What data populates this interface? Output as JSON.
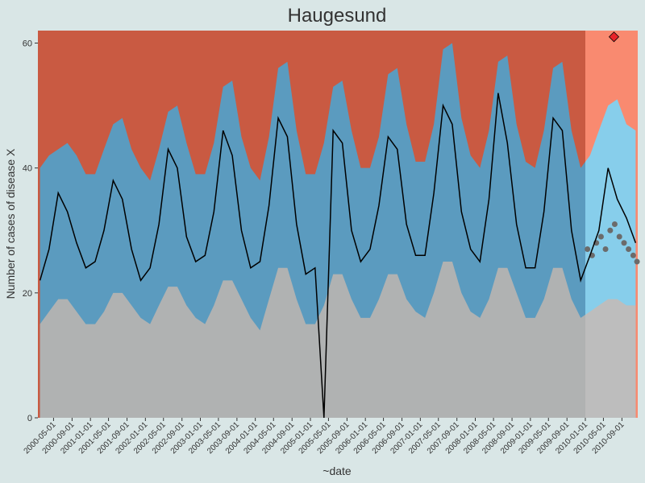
{
  "chart_data": {
    "type": "surveillance",
    "title": "Haugesund",
    "x_label": "~date",
    "y_label": "Number of cases of disease X",
    "x": [
      "2000-02-01",
      "2000-04-01",
      "2000-06-01",
      "2000-08-01",
      "2000-10-01",
      "2000-12-01",
      "2001-02-01",
      "2001-04-01",
      "2001-06-01",
      "2001-08-01",
      "2001-10-01",
      "2001-12-01",
      "2002-02-01",
      "2002-04-01",
      "2002-06-01",
      "2002-08-01",
      "2002-10-01",
      "2002-12-01",
      "2003-02-01",
      "2003-04-01",
      "2003-06-01",
      "2003-08-01",
      "2003-10-01",
      "2003-12-01",
      "2004-02-01",
      "2004-04-01",
      "2004-06-01",
      "2004-08-01",
      "2004-10-01",
      "2004-12-01",
      "2005-02-01",
      "2005-04-01",
      "2005-06-01",
      "2005-08-01",
      "2005-10-01",
      "2005-12-01",
      "2006-02-01",
      "2006-04-01",
      "2006-06-01",
      "2006-08-01",
      "2006-10-01",
      "2006-12-01",
      "2007-02-01",
      "2007-04-01",
      "2007-06-01",
      "2007-08-01",
      "2007-10-01",
      "2007-12-01",
      "2008-02-01",
      "2008-04-01",
      "2008-06-01",
      "2008-08-01",
      "2008-10-01",
      "2008-12-01",
      "2009-02-01",
      "2009-04-01",
      "2009-06-01",
      "2009-08-01",
      "2009-10-01",
      "2009-12-01",
      "2010-02-01",
      "2010-04-01",
      "2010-06-01",
      "2010-08-01",
      "2010-10-01",
      "2010-12-01"
    ],
    "series": [
      {
        "role": "upper",
        "color": "#5b9bbf",
        "values": [
          40,
          42,
          43,
          44,
          42,
          39,
          39,
          43,
          47,
          48,
          43,
          40,
          38,
          43,
          49,
          50,
          44,
          39,
          39,
          44,
          53,
          54,
          45,
          40,
          38,
          45,
          56,
          57,
          46,
          39,
          39,
          44,
          53,
          54,
          46,
          40,
          40,
          45,
          55,
          56,
          47,
          41,
          41,
          47,
          59,
          60,
          48,
          42,
          40,
          46,
          57,
          58,
          47,
          41,
          40,
          46,
          56,
          57,
          46,
          40,
          42,
          46,
          50,
          51,
          47,
          46
        ]
      },
      {
        "role": "lower",
        "color": "#b0b2b2",
        "values": [
          15,
          17,
          19,
          19,
          17,
          15,
          15,
          17,
          20,
          20,
          18,
          16,
          15,
          18,
          21,
          21,
          18,
          16,
          15,
          18,
          22,
          22,
          19,
          16,
          14,
          19,
          24,
          24,
          19,
          15,
          15,
          18,
          23,
          23,
          19,
          16,
          16,
          19,
          23,
          23,
          19,
          17,
          16,
          20,
          25,
          25,
          20,
          17,
          16,
          19,
          24,
          24,
          20,
          16,
          16,
          19,
          24,
          24,
          19,
          16,
          17,
          18,
          19,
          19,
          18,
          18
        ]
      },
      {
        "role": "cases",
        "color": "#000000",
        "values": [
          22,
          27,
          36,
          33,
          28,
          24,
          25,
          30,
          38,
          35,
          27,
          22,
          24,
          31,
          43,
          40,
          29,
          25,
          26,
          33,
          46,
          42,
          30,
          24,
          25,
          34,
          48,
          45,
          31,
          23,
          24,
          0,
          46,
          44,
          30,
          25,
          27,
          34,
          45,
          43,
          31,
          26,
          26,
          36,
          50,
          47,
          33,
          27,
          25,
          35,
          52,
          44,
          31,
          24,
          24,
          33,
          48,
          46,
          30,
          22,
          26,
          30,
          40,
          35,
          32,
          28
        ]
      }
    ],
    "above_color": "#c95a42",
    "prediction_start": "2010-01-01",
    "prediction_colors": {
      "above": "#f98a70",
      "band": "#87ceeb",
      "below": "#bdbdbd"
    },
    "points": {
      "color": "#6b6b6b",
      "x": [
        "2010-01-15",
        "2010-02-15",
        "2010-03-15",
        "2010-04-15",
        "2010-05-15",
        "2010-06-15",
        "2010-07-15",
        "2010-08-15",
        "2010-09-15",
        "2010-10-15",
        "2010-11-15",
        "2010-12-10"
      ],
      "values": [
        27,
        26,
        28,
        29,
        27,
        30,
        31,
        29,
        28,
        27,
        26,
        25
      ]
    },
    "signal": {
      "x": "2010-07-10",
      "value": 61,
      "color": "#e8242a"
    },
    "xlim": [
      "2000-01-18",
      "2010-12-15"
    ],
    "ylim": [
      0,
      62
    ],
    "yticks": [
      0,
      20,
      40,
      60
    ],
    "xticks": [
      "2000-05-01",
      "2000-09-01",
      "2001-01-01",
      "2001-05-01",
      "2001-09-01",
      "2002-01-01",
      "2002-05-01",
      "2002-09-01",
      "2003-01-01",
      "2003-05-01",
      "2003-09-01",
      "2004-01-01",
      "2004-05-01",
      "2004-09-01",
      "2005-01-01",
      "2005-05-01",
      "2005-09-01",
      "2006-01-01",
      "2006-05-01",
      "2006-09-01",
      "2007-01-01",
      "2007-05-01",
      "2007-09-01",
      "2008-01-01",
      "2008-05-01",
      "2008-09-01",
      "2009-01-01",
      "2009-05-01",
      "2009-09-01",
      "2010-01-01",
      "2010-05-01",
      "2010-09-01"
    ],
    "grid": false
  }
}
